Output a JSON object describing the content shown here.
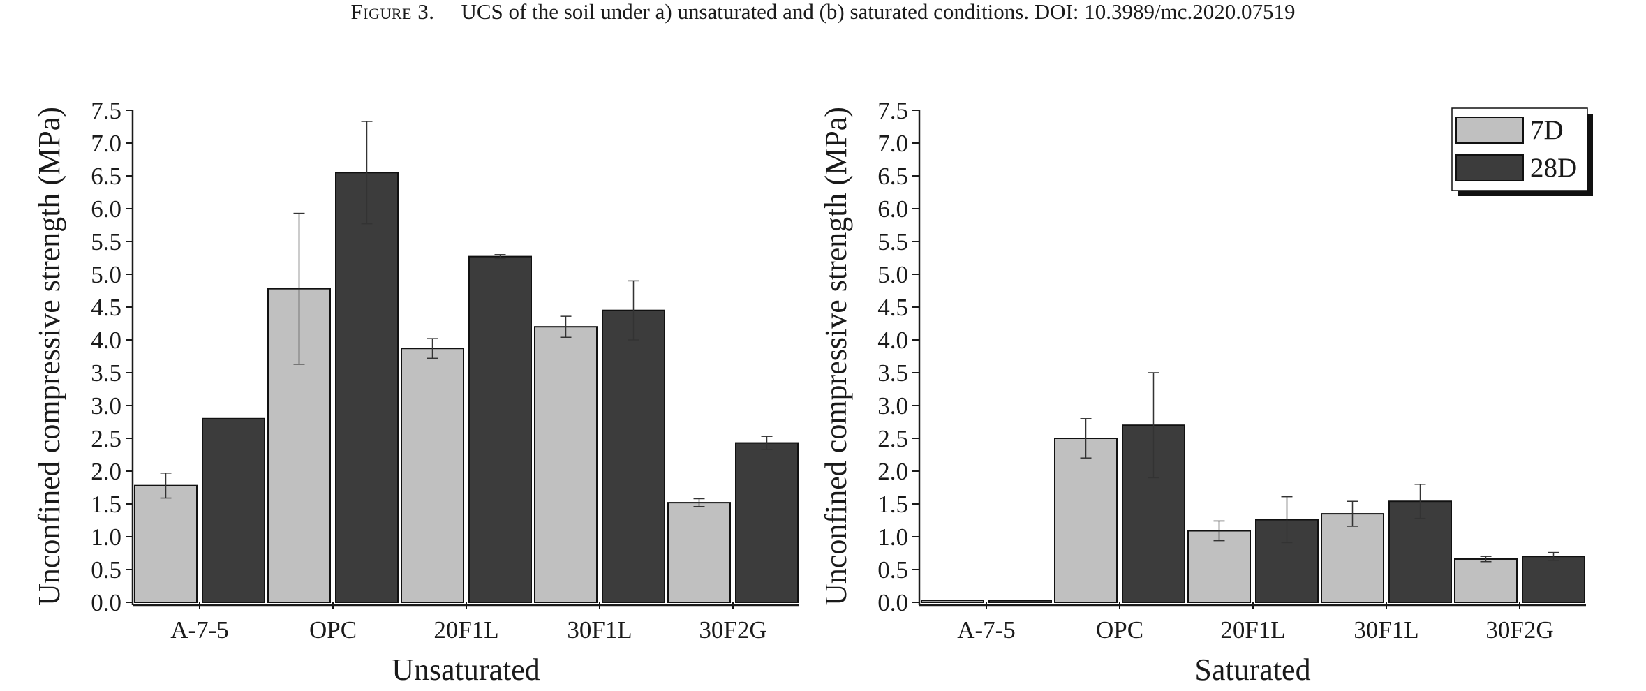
{
  "caption": {
    "figure_label": "Figure 3.",
    "text": "UCS of the soil under a) unsaturated and (b) saturated conditions. DOI: 10.3989/mc.2020.07519"
  },
  "colors": {
    "7D": "#c0c0c0",
    "28D": "#3c3c3c",
    "axis": "#1a1a1a"
  },
  "chart_data": [
    {
      "type": "bar",
      "categories": [
        "A-7-5",
        "OPC",
        "20F1L",
        "30F1L",
        "30F2G"
      ],
      "series": [
        {
          "name": "7D",
          "values": [
            1.78,
            4.78,
            3.87,
            4.2,
            1.52
          ],
          "errors": [
            0.19,
            1.15,
            0.15,
            0.16,
            0.06
          ]
        },
        {
          "name": "28D",
          "values": [
            2.8,
            6.55,
            5.27,
            4.45,
            2.43
          ],
          "errors": [
            0.0,
            0.78,
            0.03,
            0.45,
            0.1
          ]
        }
      ],
      "xlabel": "Unsaturated",
      "ylabel": "Unconfined compressive strength (MPa)",
      "ylim": [
        0,
        7.5
      ],
      "yticks": [
        "0.0",
        "0.5",
        "1.0",
        "1.5",
        "2.0",
        "2.5",
        "3.0",
        "3.5",
        "4.0",
        "4.5",
        "5.0",
        "5.5",
        "6.0",
        "6.5",
        "7.0",
        "7.5"
      ],
      "legend": false,
      "grid": false
    },
    {
      "type": "bar",
      "categories": [
        "A-7-5",
        "OPC",
        "20F1L",
        "30F1L",
        "30F2G"
      ],
      "series": [
        {
          "name": "7D",
          "values": [
            0.03,
            2.5,
            1.09,
            1.35,
            0.66
          ],
          "errors": [
            0.0,
            0.3,
            0.15,
            0.19,
            0.04
          ]
        },
        {
          "name": "28D",
          "values": [
            0.03,
            2.7,
            1.26,
            1.54,
            0.7
          ],
          "errors": [
            0.0,
            0.8,
            0.35,
            0.26,
            0.06
          ]
        }
      ],
      "xlabel": "Saturated",
      "ylabel": "Unconfined compressive strength (MPa)",
      "ylim": [
        0,
        7.5
      ],
      "yticks": [
        "0.0",
        "0.5",
        "1.0",
        "1.5",
        "2.0",
        "2.5",
        "3.0",
        "3.5",
        "4.0",
        "4.5",
        "5.0",
        "5.5",
        "6.0",
        "6.5",
        "7.0",
        "7.5"
      ],
      "legend": true,
      "legend_position": "top-right",
      "grid": false
    }
  ]
}
